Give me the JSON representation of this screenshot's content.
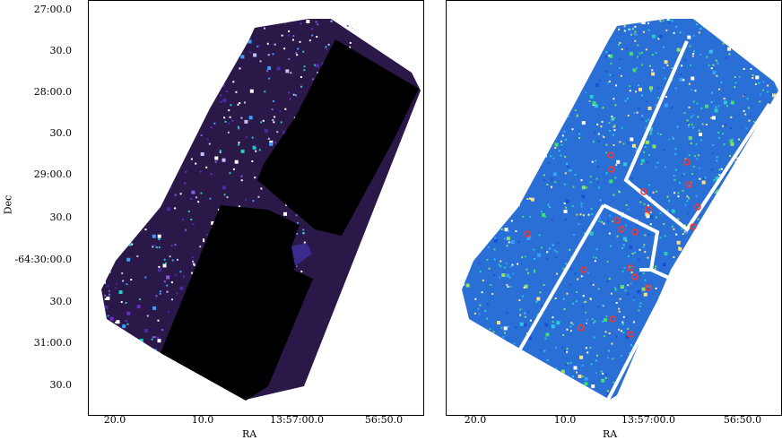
{
  "axes": {
    "y_title": "Dec",
    "x_title_left": "RA",
    "x_title_right": "RA",
    "y_ticks": [
      "27:00.0",
      "30.0",
      "28:00.0",
      "30.0",
      "29:00.0",
      "30.0",
      "-64:30:00.0",
      "30.0",
      "31:00.0",
      "30.0"
    ],
    "x_ticks_left": [
      "20.0",
      "10.0",
      "13:57:00.0",
      "56:50.0"
    ],
    "x_ticks_right": [
      "20.0",
      "10.0",
      "13:57:00.0",
      "56:50.0"
    ]
  },
  "colors": {
    "left_background_field": "#2a1848",
    "left_mask": "#000000",
    "right_field": "#2a6fd6",
    "right_chip_gap": "#ffffff",
    "source_marker": "#ff3322"
  }
}
